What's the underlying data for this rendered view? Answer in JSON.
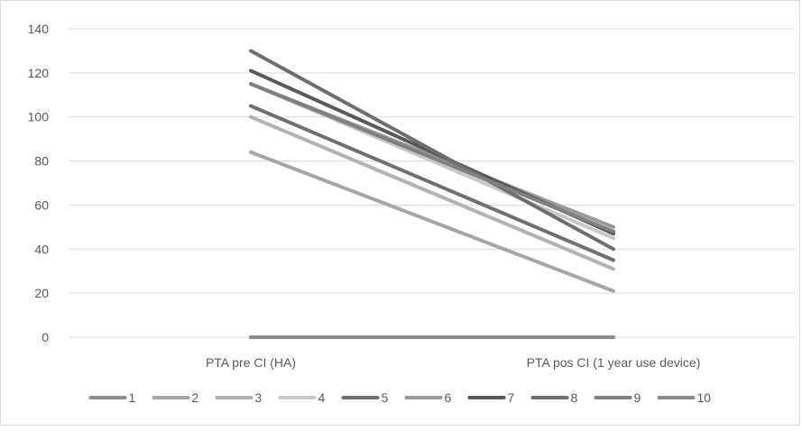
{
  "chart_data": {
    "type": "line",
    "title": "",
    "xlabel": "",
    "ylabel": "",
    "categories": [
      "PTA pre CI (HA)",
      "PTA pos CI (1 year use device)"
    ],
    "ylim": [
      0,
      140
    ],
    "yticks": [
      0,
      20,
      40,
      60,
      80,
      100,
      120,
      140
    ],
    "grid": true,
    "legend_position": "bottom",
    "series": [
      {
        "name": "1",
        "values": [
          0,
          0
        ],
        "color": "#8c8c8c"
      },
      {
        "name": "2",
        "values": [
          84,
          21
        ],
        "color": "#a6a6a6"
      },
      {
        "name": "3",
        "values": [
          100,
          31
        ],
        "color": "#b3b3b3"
      },
      {
        "name": "4",
        "values": [
          115,
          45
        ],
        "color": "#c8c8c8"
      },
      {
        "name": "5",
        "values": [
          105,
          35
        ],
        "color": "#707070"
      },
      {
        "name": "6",
        "values": [
          115,
          50
        ],
        "color": "#999999"
      },
      {
        "name": "7",
        "values": [
          121,
          47
        ],
        "color": "#595959"
      },
      {
        "name": "8",
        "values": [
          130,
          40
        ],
        "color": "#6e6e6e"
      },
      {
        "name": "9",
        "values": [
          115,
          48
        ],
        "color": "#808080"
      },
      {
        "name": "10",
        "values": [
          0,
          0
        ],
        "color": "#8a8a8a"
      }
    ]
  }
}
